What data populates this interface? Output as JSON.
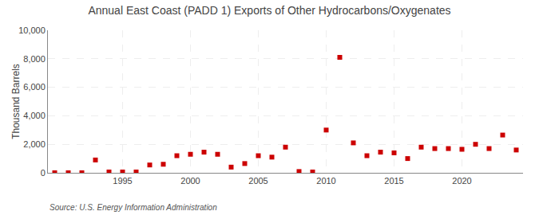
{
  "chart_data": {
    "type": "scatter",
    "title": "Annual East Coast (PADD 1) Exports of Other Hydrocarbons/Oxygenates",
    "y_label": "Thousand Barrels",
    "annotations": [
      "Source: U.S. Energy Information Administration"
    ],
    "x": [
      1990,
      1991,
      1992,
      1993,
      1994,
      1995,
      1996,
      1997,
      1998,
      1999,
      2000,
      2001,
      2002,
      2003,
      2004,
      2005,
      2006,
      2007,
      2008,
      2009,
      2010,
      2011,
      2012,
      2013,
      2014,
      2015,
      2016,
      2017,
      2018,
      2019,
      2020,
      2021,
      2022,
      2023,
      2024
    ],
    "values": [
      5,
      5,
      5,
      900,
      60,
      60,
      60,
      550,
      600,
      1200,
      1300,
      1450,
      1300,
      400,
      650,
      1200,
      1100,
      1800,
      90,
      60,
      3000,
      8100,
      2100,
      1200,
      1450,
      1400,
      1000,
      1800,
      1700,
      1700,
      1650,
      2000,
      1700,
      2650,
      1600
    ],
    "color": "#cc0000",
    "marker": "square",
    "xlim": [
      1989.5,
      2024.5
    ],
    "xticks": [
      1995,
      2000,
      2005,
      2010,
      2015,
      2020
    ],
    "ylim": [
      0,
      10000
    ],
    "yticks": [
      0,
      {
        "value": 2000,
        "label": "2,000"
      },
      {
        "value": 4000,
        "label": "4,000"
      },
      {
        "value": 6000,
        "label": "6,000"
      },
      {
        "value": 8000,
        "label": "8,000"
      },
      {
        "value": 10000,
        "label": "10,000"
      }
    ],
    "grid": true
  }
}
